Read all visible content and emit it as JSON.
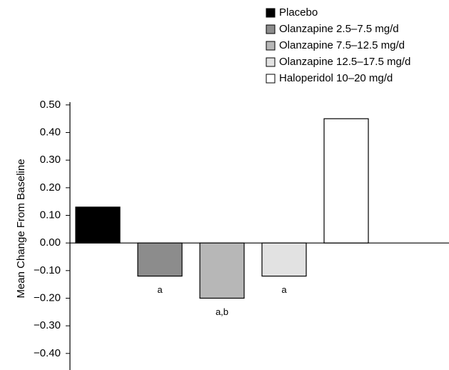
{
  "chart_data": {
    "type": "bar",
    "y_label": "Mean Change From Baseline",
    "series": [
      {
        "name": "Placebo",
        "color": "#000000",
        "values": [
          0.13
        ]
      },
      {
        "name": "Olanzapine 2.5–7.5 mg/d",
        "color": "#8c8c8c",
        "values": [
          -0.12
        ],
        "annotation": "a"
      },
      {
        "name": "Olanzapine 7.5–12.5 mg/d",
        "color": "#b7b7b7",
        "values": [
          -0.2
        ],
        "annotation": "a,b"
      },
      {
        "name": "Olanzapine 12.5–17.5 mg/d",
        "color": "#e2e2e2",
        "values": [
          -0.12
        ],
        "annotation": "a"
      },
      {
        "name": "Haloperidol 10–20 mg/d",
        "color": "#ffffff",
        "values": [
          0.45
        ]
      }
    ],
    "ylim": [
      -0.46,
      0.51
    ],
    "yticks": [
      {
        "value": 0.5,
        "label": "0.50"
      },
      {
        "value": 0.4,
        "label": "0.40"
      },
      {
        "value": 0.3,
        "label": "0.30"
      },
      {
        "value": 0.2,
        "label": "0.20"
      },
      {
        "value": 0.1,
        "label": "0.10"
      },
      {
        "value": 0,
        "label": "0.00"
      },
      {
        "value": -0.1,
        "label": "−0.10"
      },
      {
        "value": -0.2,
        "label": "−0.20"
      },
      {
        "value": -0.3,
        "label": "−0.30"
      },
      {
        "value": -0.4,
        "label": "−0.40"
      }
    ],
    "legend": "top-right"
  }
}
